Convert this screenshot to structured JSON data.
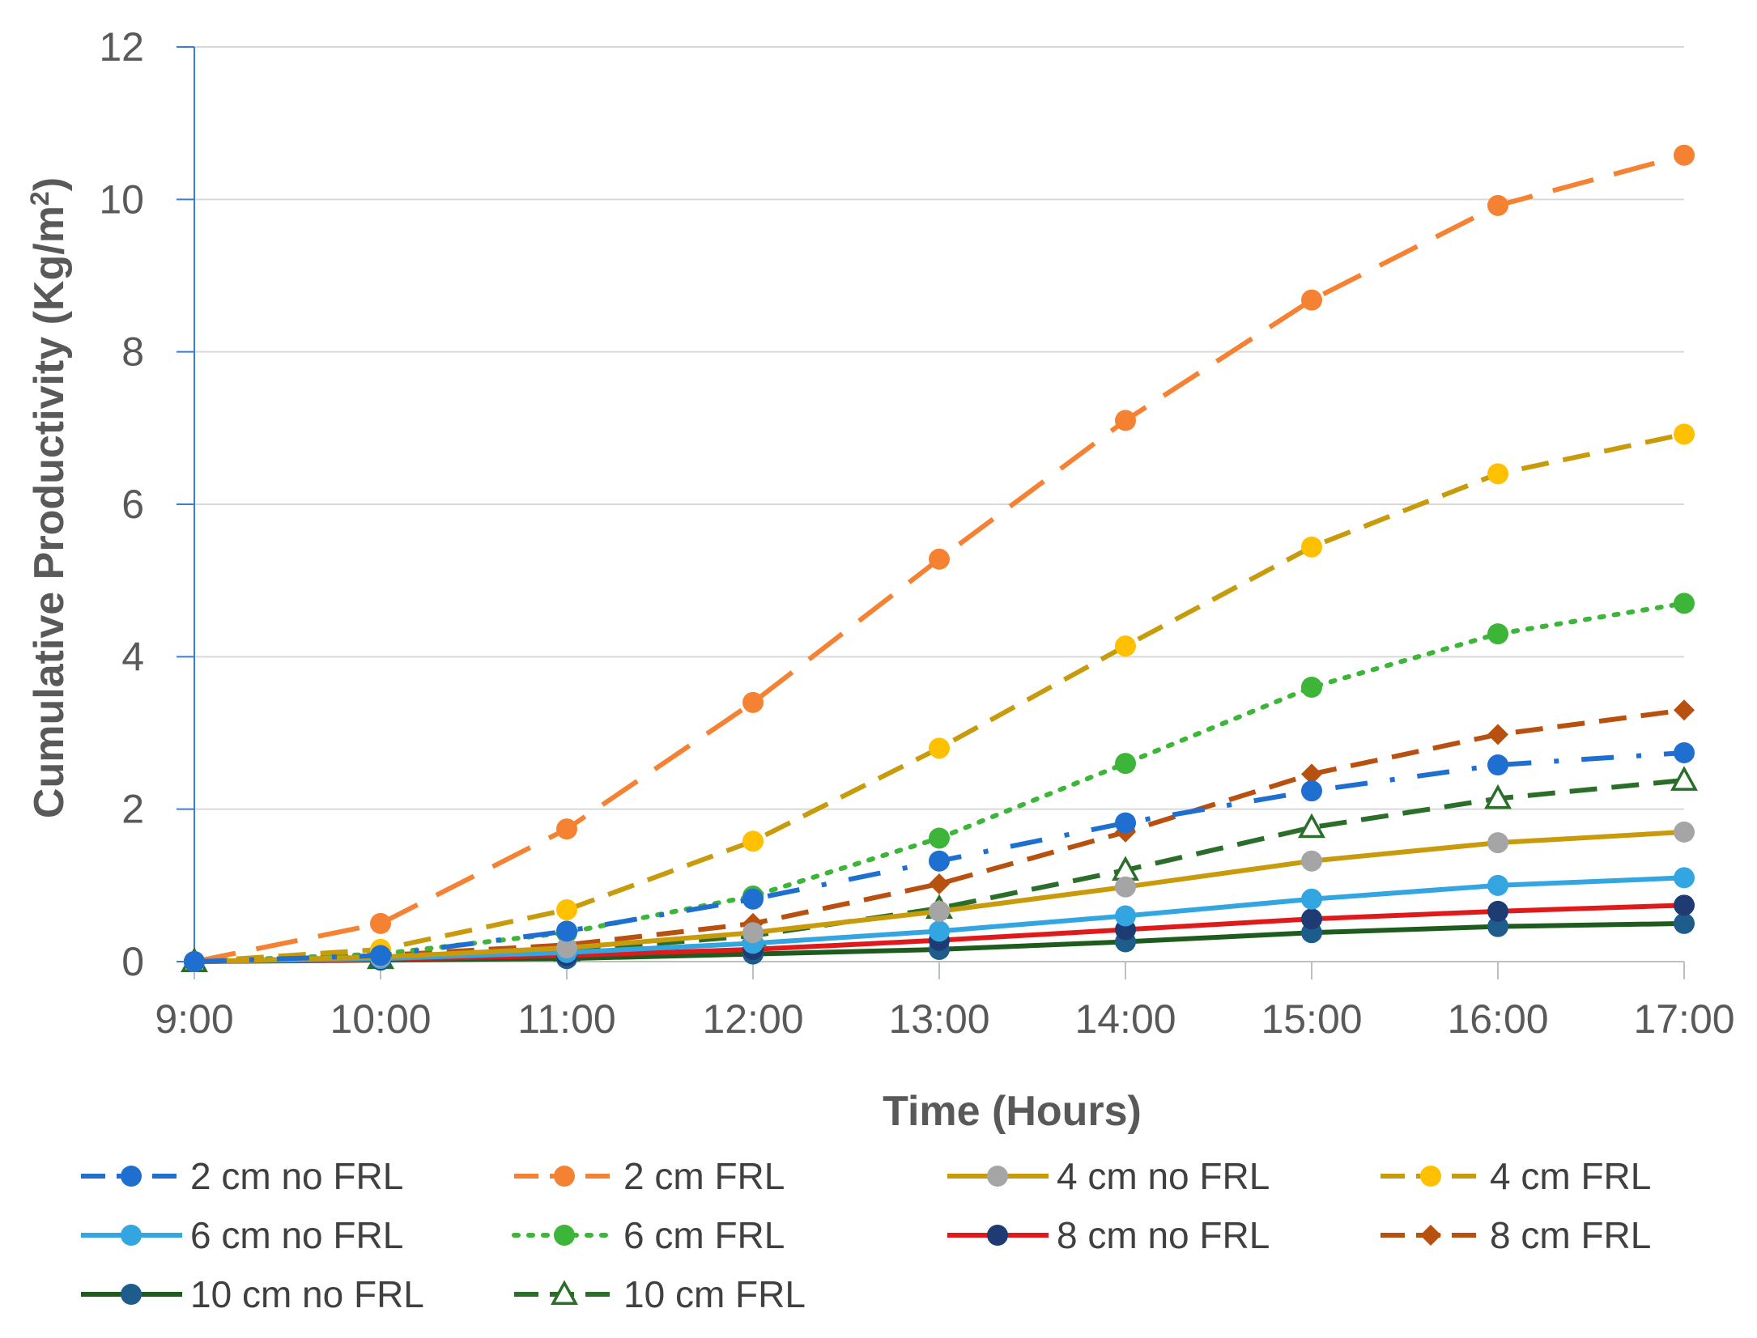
{
  "chart_data": {
    "type": "line",
    "title": "",
    "xlabel": "Time (Hours)",
    "ylabel": "Cumulative Productivity (Kg/m",
    "ylabel_superscript": "2",
    "ylabel_close": ")",
    "categories": [
      "9:00",
      "10:00",
      "11:00",
      "12:00",
      "13:00",
      "14:00",
      "15:00",
      "16:00",
      "17:00"
    ],
    "ylim": [
      0,
      12
    ],
    "yticks": [
      "0",
      "2",
      "4",
      "6",
      "8",
      "10",
      "12"
    ],
    "grid": true,
    "legend_position": "bottom",
    "series": [
      {
        "name": "2 cm no FRL",
        "values": [
          0,
          0.08,
          0.4,
          0.82,
          1.32,
          1.82,
          2.24,
          2.58,
          2.74
        ],
        "color": "#1F6FD1",
        "dash": "dashdot",
        "marker": "circle",
        "marker_color": "#1F6FD1"
      },
      {
        "name": "2 cm FRL",
        "values": [
          0,
          0.5,
          1.74,
          3.4,
          5.28,
          7.1,
          8.68,
          9.92,
          10.58
        ],
        "color": "#F58233",
        "dash": "longdash",
        "marker": "circle",
        "marker_color": "#F58233"
      },
      {
        "name": "4 cm no FRL",
        "values": [
          0,
          0.06,
          0.18,
          0.38,
          0.66,
          0.98,
          1.32,
          1.56,
          1.7
        ],
        "color": "#C89B0C",
        "dash": "solid",
        "marker": "circle",
        "marker_color": "#A5A5A5"
      },
      {
        "name": "4 cm FRL",
        "values": [
          0,
          0.16,
          0.68,
          1.58,
          2.8,
          4.14,
          5.44,
          6.4,
          6.92
        ],
        "color": "#C89B0C",
        "dash": "dash",
        "marker": "circle",
        "marker_color": "#FFC000"
      },
      {
        "name": "6 cm no FRL",
        "values": [
          0,
          0.04,
          0.12,
          0.24,
          0.4,
          0.6,
          0.82,
          1.0,
          1.1
        ],
        "color": "#33A5E0",
        "dash": "solid",
        "marker": "circle",
        "marker_color": "#33A5E0"
      },
      {
        "name": "6 cm FRL",
        "values": [
          0,
          0.1,
          0.38,
          0.86,
          1.62,
          2.6,
          3.6,
          4.3,
          4.7
        ],
        "color": "#3CB539",
        "dash": "dot",
        "marker": "circle",
        "marker_color": "#3CB539"
      },
      {
        "name": "8 cm no FRL",
        "values": [
          0,
          0.03,
          0.08,
          0.16,
          0.28,
          0.42,
          0.56,
          0.66,
          0.74
        ],
        "color": "#E01A1A",
        "dash": "solid",
        "marker": "circle",
        "marker_color": "#1F3B73"
      },
      {
        "name": "8 cm FRL",
        "values": [
          0,
          0.08,
          0.22,
          0.5,
          1.02,
          1.7,
          2.46,
          2.98,
          3.3
        ],
        "color": "#B8500F",
        "dash": "dash",
        "marker": "diamond",
        "marker_color": "#B8500F"
      },
      {
        "name": "10 cm no FRL",
        "values": [
          0,
          0.02,
          0.04,
          0.1,
          0.16,
          0.26,
          0.38,
          0.46,
          0.5
        ],
        "color": "#1E5C1E",
        "dash": "solid",
        "marker": "circle",
        "marker_color": "#1E5C8C"
      },
      {
        "name": "10 cm FRL",
        "values": [
          0,
          0.04,
          0.14,
          0.34,
          0.7,
          1.2,
          1.76,
          2.14,
          2.38
        ],
        "color": "#2A6E2A",
        "dash": "dash",
        "marker": "triangle-open",
        "marker_color": "#2A6E2A"
      }
    ]
  }
}
